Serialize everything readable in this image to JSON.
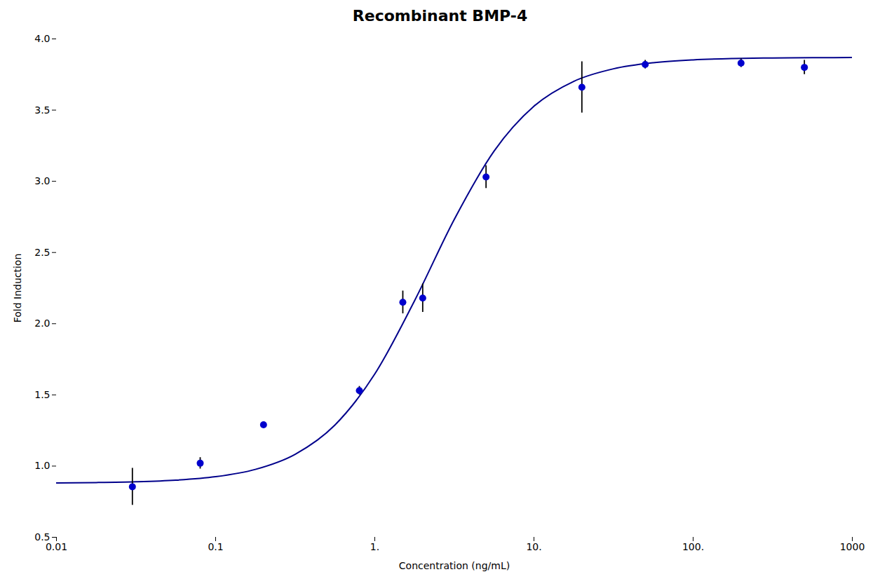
{
  "chart_data": {
    "type": "scatter",
    "title": "Recombinant BMP-4",
    "x_label": "Concentration (ng/mL)",
    "y_label": "Fold Induction",
    "log": "x",
    "grid": false,
    "xlim": [
      0.01,
      1000
    ],
    "ylim": [
      0.5,
      4.0
    ],
    "xticks": [
      0.01,
      0.1,
      {
        "value": 1,
        "label": "1."
      },
      {
        "value": 10,
        "label": "10."
      },
      {
        "value": 100,
        "label": "100."
      },
      1000
    ],
    "yticks": [
      0.5,
      {
        "value": 1.0,
        "label": "1.0"
      },
      1.5,
      {
        "value": 2.0,
        "label": "2.0"
      },
      2.5,
      {
        "value": 3.0,
        "label": "3.0"
      },
      3.5,
      {
        "value": 4.0,
        "label": "4.0"
      }
    ],
    "series": [
      {
        "type": "line",
        "color": "#00008B",
        "x": [
          0.01,
          0.017783,
          0.031623,
          0.056234,
          0.1,
          0.17783,
          0.31623,
          0.56234,
          1,
          1.7783,
          3.1623,
          5.6234,
          10,
          17.783,
          31.623,
          56.234,
          100,
          177.83,
          316.23,
          562.34,
          1000
        ],
        "values": [
          0.8821,
          0.8845,
          0.8897,
          0.901,
          0.9254,
          0.977,
          1.0832,
          1.2892,
          1.6468,
          2.1617,
          2.7339,
          3.2129,
          3.5272,
          3.702,
          3.7903,
          3.8328,
          3.8528,
          3.8621,
          3.8663,
          3.8683,
          3.8692
        ]
      },
      {
        "type": "scatter",
        "color": "#0000CD",
        "marker": "circle",
        "error_color": "#000000",
        "x": [
          0.03,
          0.08,
          0.2,
          0.8,
          1.5,
          2.0,
          5.0,
          20.0,
          50.0,
          200.0,
          500.0
        ],
        "values": [
          0.855,
          1.02,
          1.29,
          1.53,
          2.15,
          2.18,
          3.03,
          3.66,
          3.82,
          3.83,
          3.8
        ],
        "yerr": [
          0.13,
          0.04,
          0.02,
          0.03,
          0.08,
          0.1,
          0.08,
          0.18,
          0.03,
          0.03,
          0.05
        ]
      }
    ]
  }
}
